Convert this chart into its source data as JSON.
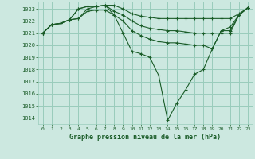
{
  "title": "Graphe pression niveau de la mer (hPa)",
  "bg_color": "#cce8e0",
  "grid_color": "#99ccbb",
  "line_color": "#1a5c28",
  "xlim": [
    -0.5,
    23.5
  ],
  "ylim": [
    1013.5,
    1023.6
  ],
  "yticks": [
    1014,
    1015,
    1016,
    1017,
    1018,
    1019,
    1020,
    1021,
    1022,
    1023
  ],
  "xticks": [
    0,
    1,
    2,
    3,
    4,
    5,
    6,
    7,
    8,
    9,
    10,
    11,
    12,
    13,
    14,
    15,
    16,
    17,
    18,
    19,
    20,
    21,
    22,
    23
  ],
  "series": [
    [
      1021.0,
      1021.7,
      1021.8,
      1022.1,
      1023.0,
      1023.2,
      1023.2,
      1023.3,
      1023.3,
      1023.0,
      1022.6,
      1022.4,
      1022.3,
      1022.2,
      1022.2,
      1022.2,
      1022.2,
      1022.2,
      1022.2,
      1022.2,
      1022.2,
      1022.2,
      1022.6,
      1023.1
    ],
    [
      1021.0,
      1021.7,
      1021.8,
      1022.1,
      1023.0,
      1023.2,
      1023.2,
      1023.3,
      1022.8,
      1022.5,
      1022.0,
      1021.6,
      1021.4,
      1021.3,
      1021.2,
      1021.2,
      1021.1,
      1021.0,
      1021.0,
      1021.0,
      1021.0,
      1021.0,
      1022.5,
      1023.1
    ],
    [
      1021.0,
      1021.7,
      1021.8,
      1022.1,
      1022.2,
      1022.8,
      1022.9,
      1022.9,
      1022.5,
      1022.0,
      1021.2,
      1020.8,
      1020.5,
      1020.3,
      1020.2,
      1020.2,
      1020.1,
      1020.0,
      1020.0,
      1019.7,
      1021.2,
      1021.2,
      1022.5,
      1023.1
    ],
    [
      1021.0,
      1021.7,
      1021.8,
      1022.1,
      1022.2,
      1023.0,
      1023.2,
      1023.3,
      1022.5,
      1021.0,
      1019.5,
      1019.3,
      1019.0,
      1017.5,
      1013.8,
      1015.2,
      1016.3,
      1017.6,
      1018.0,
      1019.7,
      1021.2,
      1021.5,
      1022.5,
      1023.1
    ]
  ]
}
